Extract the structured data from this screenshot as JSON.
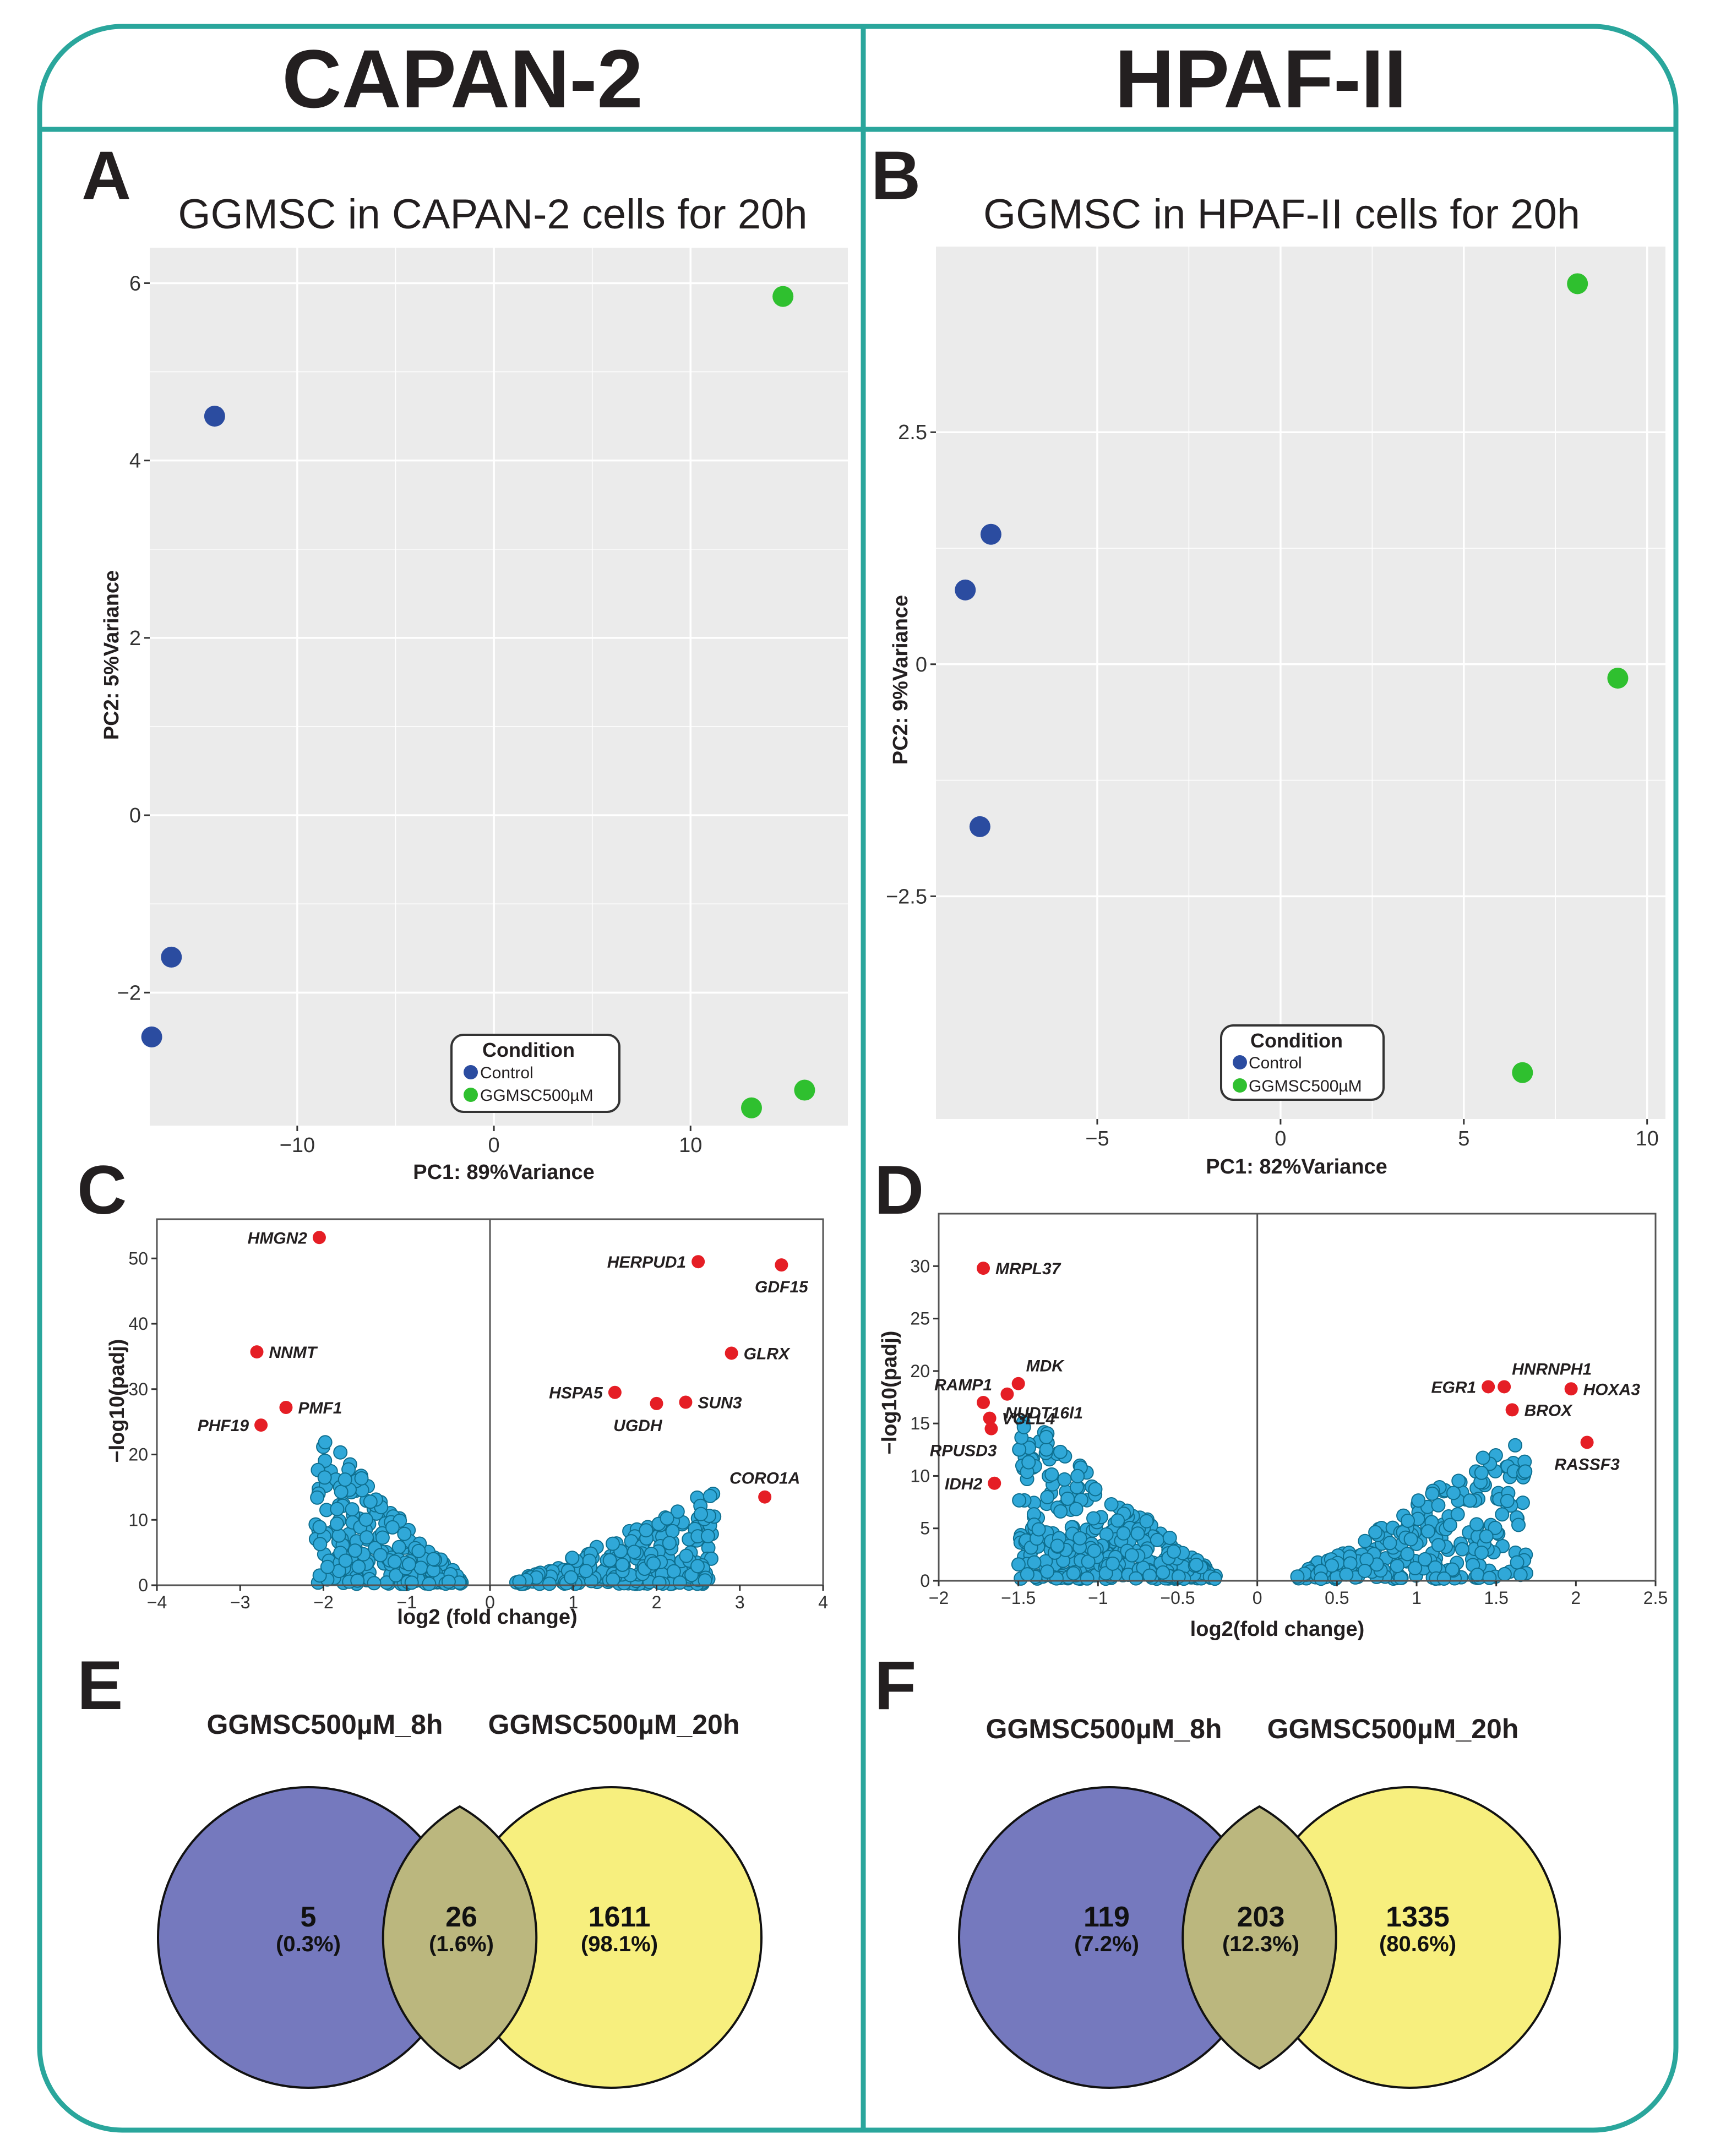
{
  "header": {
    "left_title": "CAPAN-2",
    "right_title": "HPAF-II"
  },
  "colors": {
    "frame": "#2aa69c",
    "control": "#2b4ca0",
    "treated": "#2fc02f",
    "panel_bg": "#ebebeb",
    "grid": "#ffffff",
    "volcano_point": "#30a8d8",
    "volcano_edge": "#0e6f8f",
    "highlight": "#e51e25",
    "venn_a": "#7579be",
    "venn_b": "#f7ef7e",
    "venn_overlap": "#bbb77e"
  },
  "chart_data": [
    {
      "panel": "A",
      "type": "scatter",
      "title": "GGMSC in CAPAN-2 cells for 20h",
      "xlabel": "PC1: 89%Variance",
      "ylabel": "PC2: 5%Variance",
      "xlim": [
        -17.5,
        18
      ],
      "ylim": [
        -3.5,
        6.4
      ],
      "xticks": [
        {
          "v": -10,
          "label": "−10"
        },
        {
          "v": 0,
          "label": "0"
        },
        {
          "v": 10,
          "label": "10"
        }
      ],
      "yticks": [
        {
          "v": -2,
          "label": "−2"
        },
        {
          "v": 0,
          "label": "0"
        },
        {
          "v": 2,
          "label": "2"
        },
        {
          "v": 4,
          "label": "4"
        },
        {
          "v": 6,
          "label": "6"
        }
      ],
      "legend": {
        "title": "Condition",
        "items": [
          "Control",
          "GGMSC500µM"
        ],
        "position": "bottom-center"
      },
      "series": [
        {
          "name": "Control",
          "points": [
            [
              -14.2,
              4.5
            ],
            [
              -16.4,
              -1.6
            ],
            [
              -17.4,
              -2.5
            ]
          ]
        },
        {
          "name": "GGMSC500µM",
          "points": [
            [
              14.7,
              5.85
            ],
            [
              13.1,
              -3.3
            ],
            [
              15.8,
              -3.1
            ]
          ]
        }
      ]
    },
    {
      "panel": "B",
      "type": "scatter",
      "title": "GGMSC in HPAF-II cells for 20h",
      "xlabel": "PC1: 82%Variance",
      "ylabel": "PC2: 9%Variance",
      "xlim": [
        -9.4,
        10.5
      ],
      "ylim": [
        -4.9,
        4.5
      ],
      "xticks": [
        {
          "v": -5,
          "label": "−5"
        },
        {
          "v": 0,
          "label": "0"
        },
        {
          "v": 5,
          "label": "5"
        },
        {
          "v": 10,
          "label": "10"
        }
      ],
      "yticks": [
        {
          "v": -2.5,
          "label": "−2.5"
        },
        {
          "v": 0,
          "label": "0"
        },
        {
          "v": 2.5,
          "label": "2.5"
        }
      ],
      "legend": {
        "title": "Condition",
        "items": [
          "Control",
          "GGMSC500µM"
        ],
        "position": "bottom-center"
      },
      "series": [
        {
          "name": "Control",
          "points": [
            [
              -7.9,
              1.4
            ],
            [
              -8.6,
              0.8
            ],
            [
              -8.2,
              -1.75
            ]
          ]
        },
        {
          "name": "GGMSC500µM",
          "points": [
            [
              8.1,
              4.1
            ],
            [
              9.2,
              -0.15
            ],
            [
              6.6,
              -4.4
            ]
          ]
        }
      ]
    },
    {
      "panel": "C",
      "type": "scatter",
      "subtype": "volcano",
      "xlabel": "log2 (fold change)",
      "ylabel": "−log10(padj)",
      "xlim": [
        -4,
        4
      ],
      "ylim": [
        0,
        56
      ],
      "xticks": [
        {
          "v": -4,
          "label": "−4"
        },
        {
          "v": -3,
          "label": "−3"
        },
        {
          "v": -2,
          "label": "−2"
        },
        {
          "v": -1,
          "label": "−1"
        },
        {
          "v": 0,
          "label": "0"
        },
        {
          "v": 1,
          "label": "1"
        },
        {
          "v": 2,
          "label": "2"
        },
        {
          "v": 3,
          "label": "3"
        },
        {
          "v": 4,
          "label": "4"
        }
      ],
      "yticks": [
        {
          "v": 0,
          "label": "0"
        },
        {
          "v": 10,
          "label": "10"
        },
        {
          "v": 20,
          "label": "20"
        },
        {
          "v": 30,
          "label": "30"
        },
        {
          "v": 40,
          "label": "40"
        },
        {
          "v": 50,
          "label": "50"
        }
      ],
      "cloud": {
        "down": {
          "x_inner": -0.3,
          "x_outer": -2.1,
          "y_peak": 24,
          "n": 230
        },
        "up": {
          "x_inner": 0.3,
          "x_outer": 2.7,
          "y_peak": 14,
          "n": 260
        }
      },
      "labeled_genes": [
        {
          "name": "HMGN2",
          "x": -2.05,
          "y": 53.2,
          "side": "left"
        },
        {
          "name": "NNMT",
          "x": -2.8,
          "y": 35.7,
          "side": "right"
        },
        {
          "name": "PMF1",
          "x": -2.45,
          "y": 27.2,
          "side": "right"
        },
        {
          "name": "PHF19",
          "x": -2.75,
          "y": 24.5,
          "side": "left"
        },
        {
          "name": "HERPUD1",
          "x": 2.5,
          "y": 49.5,
          "side": "left"
        },
        {
          "name": "GDF15",
          "x": 3.5,
          "y": 49.0,
          "side": "below"
        },
        {
          "name": "GLRX",
          "x": 2.9,
          "y": 35.5,
          "side": "right"
        },
        {
          "name": "HSPA5",
          "x": 1.5,
          "y": 29.5,
          "side": "left"
        },
        {
          "name": "SUN3",
          "x": 2.35,
          "y": 28.0,
          "side": "right"
        },
        {
          "name": "UGDH",
          "x": 2.0,
          "y": 27.8,
          "side": "below-left"
        },
        {
          "name": "CORO1A",
          "x": 3.3,
          "y": 13.5,
          "side": "above"
        }
      ]
    },
    {
      "panel": "D",
      "type": "scatter",
      "subtype": "volcano",
      "xlabel": "log2(fold change)",
      "ylabel": "−log10(padj)",
      "xlim": [
        -2,
        2.5
      ],
      "ylim": [
        0,
        35
      ],
      "xticks": [
        {
          "v": -2,
          "label": "−2"
        },
        {
          "v": -1.5,
          "label": "−1.5"
        },
        {
          "v": -1,
          "label": "−1"
        },
        {
          "v": -0.5,
          "label": "−0.5"
        },
        {
          "v": 0,
          "label": "0"
        },
        {
          "v": 0.5,
          "label": "0.5"
        },
        {
          "v": 1,
          "label": "1"
        },
        {
          "v": 1.5,
          "label": "1.5"
        },
        {
          "v": 2,
          "label": "2"
        },
        {
          "v": 2.5,
          "label": "2.5"
        }
      ],
      "yticks": [
        {
          "v": 0,
          "label": "0"
        },
        {
          "v": 5,
          "label": "5"
        },
        {
          "v": 10,
          "label": "10"
        },
        {
          "v": 15,
          "label": "15"
        },
        {
          "v": 20,
          "label": "20"
        },
        {
          "v": 25,
          "label": "25"
        },
        {
          "v": 30,
          "label": "30"
        }
      ],
      "cloud": {
        "down": {
          "x_inner": -0.25,
          "x_outer": -1.5,
          "y_peak": 16,
          "n": 330
        },
        "up": {
          "x_inner": 0.25,
          "x_outer": 1.7,
          "y_peak": 14,
          "n": 250
        }
      },
      "labeled_genes": [
        {
          "name": "MRPL37",
          "x": -1.72,
          "y": 29.8,
          "side": "right"
        },
        {
          "name": "MDK",
          "x": -1.5,
          "y": 18.8,
          "side": "above-right"
        },
        {
          "name": "RAMP1",
          "x": -1.72,
          "y": 17.0,
          "side": "above-left"
        },
        {
          "name": "NUDT16l1",
          "x": -1.57,
          "y": 17.8,
          "side": "below-right"
        },
        {
          "name": "VGLL4",
          "x": -1.68,
          "y": 15.5,
          "side": "right"
        },
        {
          "name": "RPUSD3",
          "x": -1.67,
          "y": 14.5,
          "side": "below-left"
        },
        {
          "name": "IDH2",
          "x": -1.65,
          "y": 9.3,
          "side": "left"
        },
        {
          "name": "EGR1",
          "x": 1.45,
          "y": 18.5,
          "side": "left"
        },
        {
          "name": "HNRNPH1",
          "x": 1.55,
          "y": 18.5,
          "side": "above-right"
        },
        {
          "name": "HOXA3",
          "x": 1.97,
          "y": 18.3,
          "side": "right"
        },
        {
          "name": "BROX",
          "x": 1.6,
          "y": 16.3,
          "side": "right"
        },
        {
          "name": "RASSF3",
          "x": 2.07,
          "y": 13.2,
          "side": "below"
        }
      ]
    },
    {
      "panel": "E",
      "type": "venn",
      "sets": [
        "GGMSC500µM_8h",
        "GGMSC500µM_20h"
      ],
      "regions": [
        {
          "region": "only_8h",
          "count": "5",
          "pct": "(0.3%)"
        },
        {
          "region": "both",
          "count": "26",
          "pct": "(1.6%)"
        },
        {
          "region": "only_20h",
          "count": "1611",
          "pct": "(98.1%)"
        }
      ]
    },
    {
      "panel": "F",
      "type": "venn",
      "sets": [
        "GGMSC500µM_8h",
        "GGMSC500µM_20h"
      ],
      "regions": [
        {
          "region": "only_8h",
          "count": "119",
          "pct": "(7.2%)"
        },
        {
          "region": "both",
          "count": "203",
          "pct": "(12.3%)"
        },
        {
          "region": "only_20h",
          "count": "1335",
          "pct": "(80.6%)"
        }
      ]
    }
  ]
}
